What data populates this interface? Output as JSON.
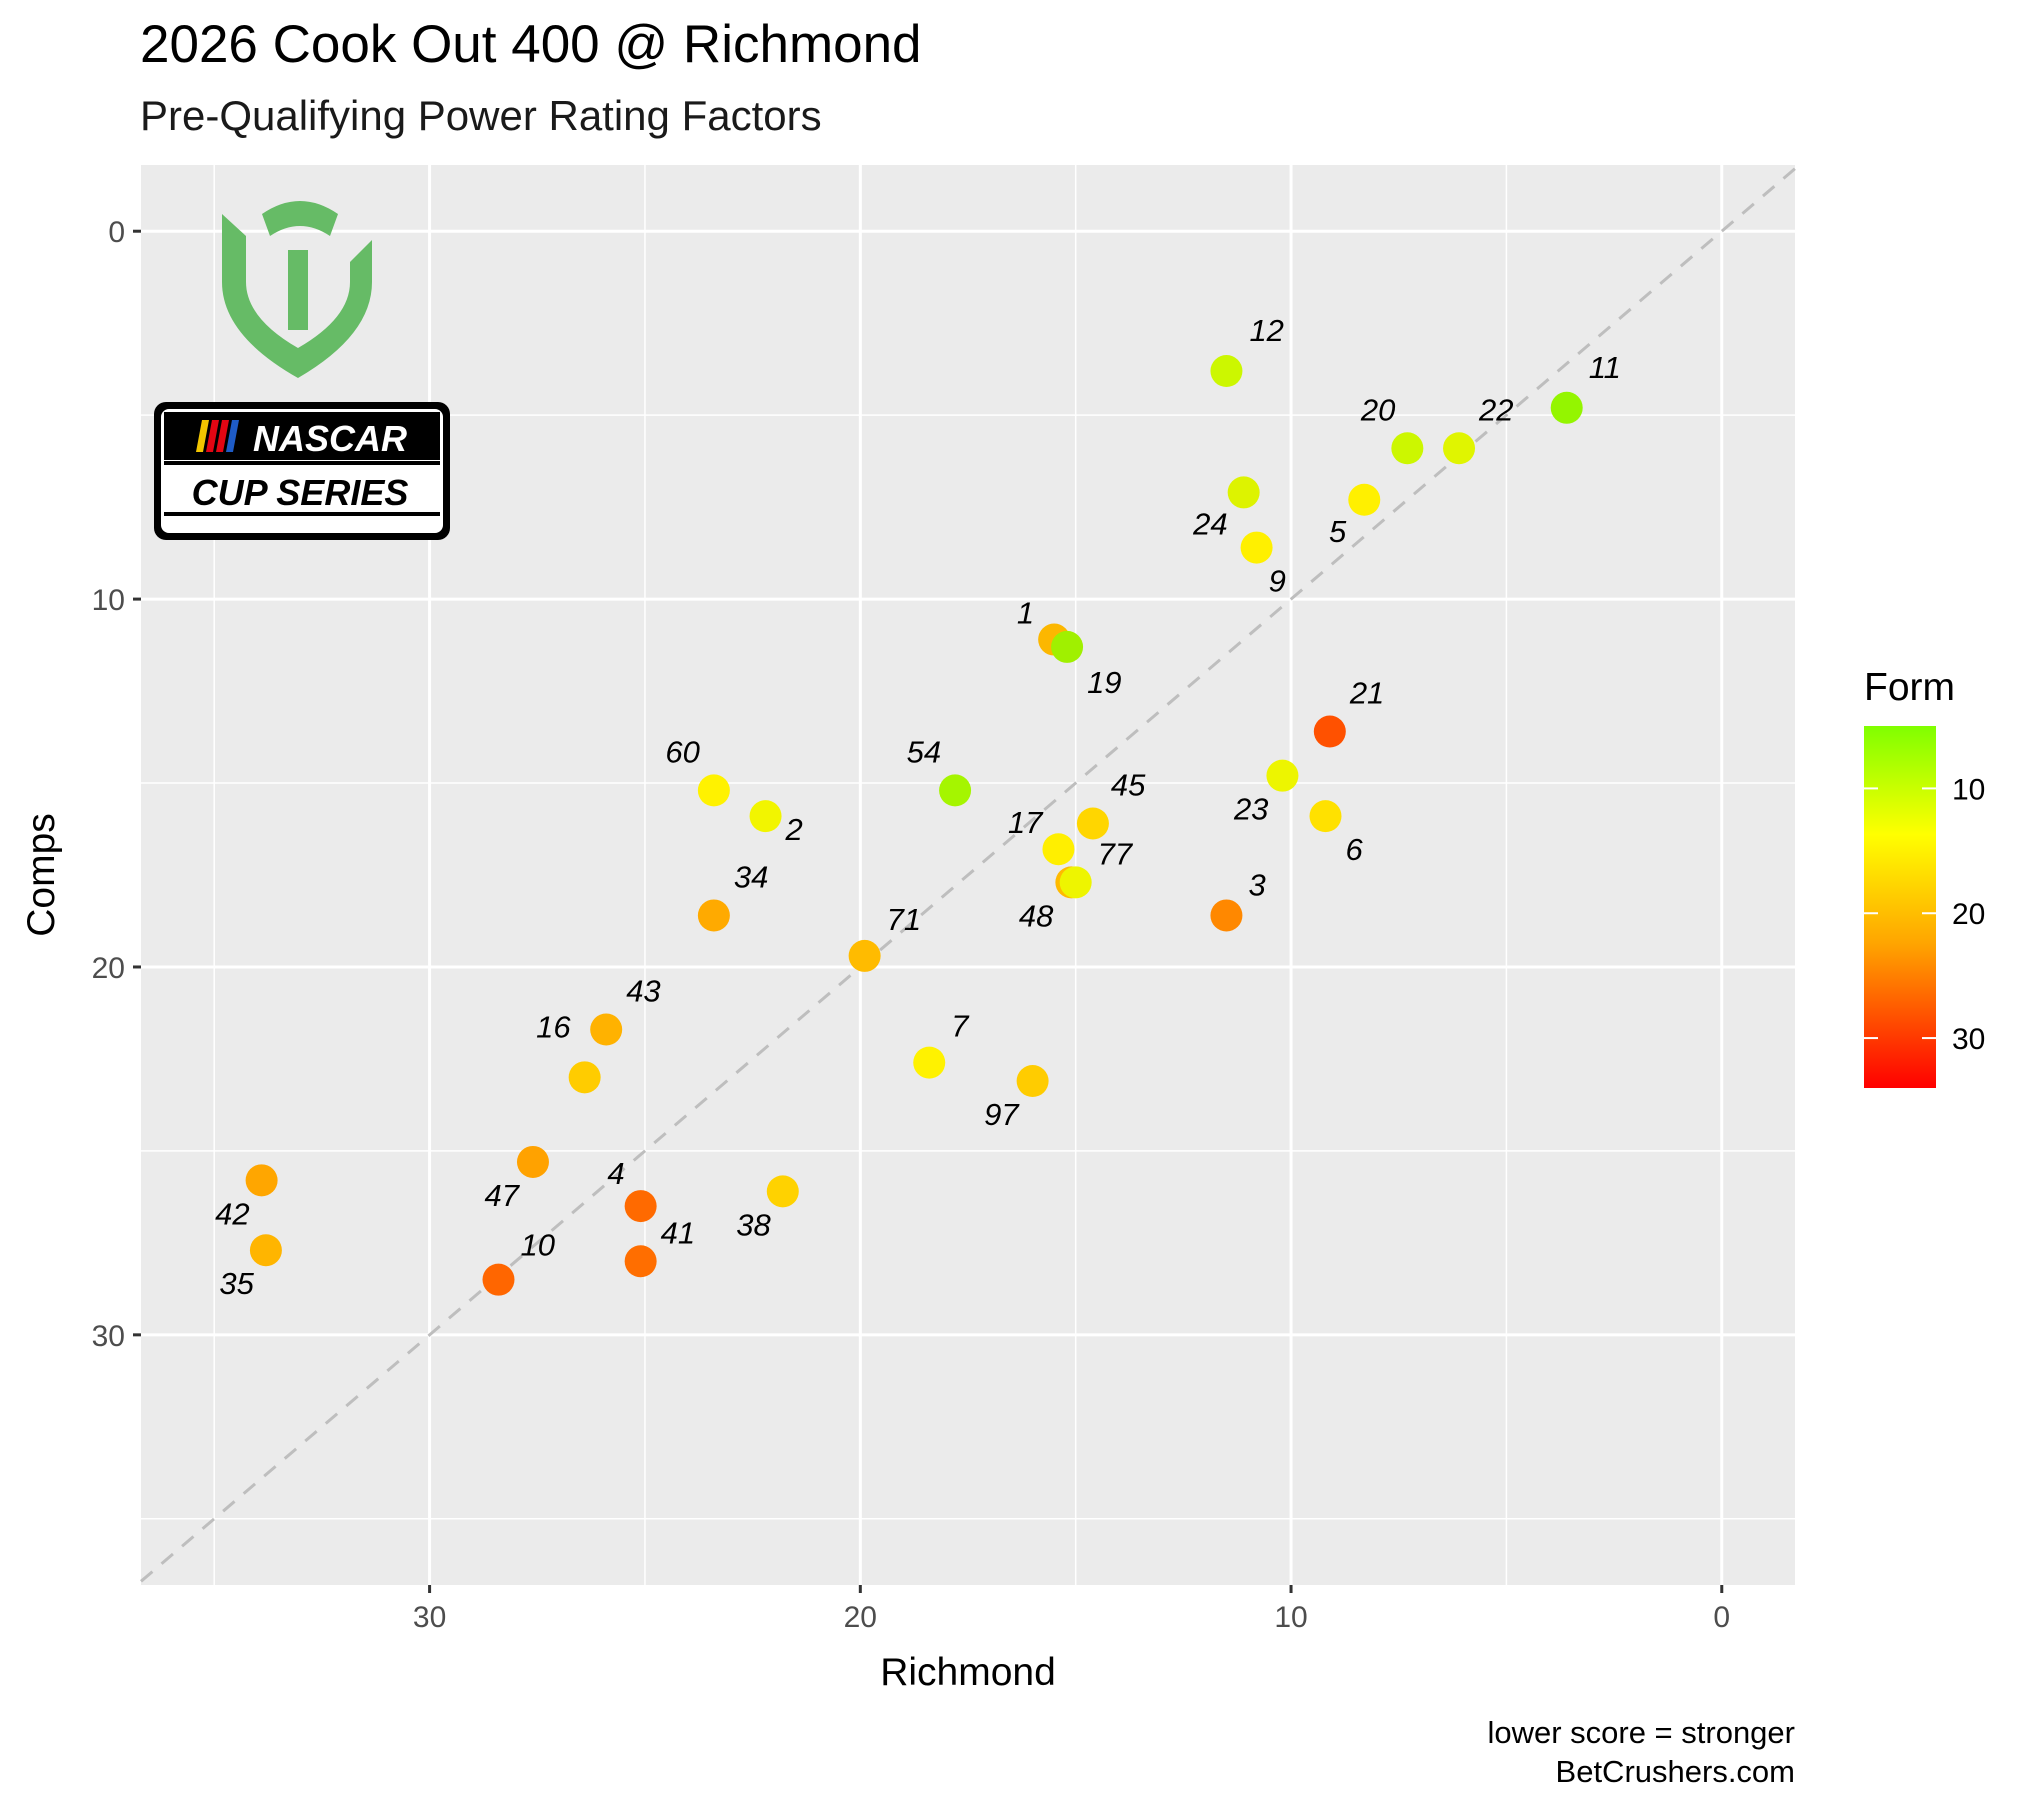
{
  "chart_data": {
    "type": "scatter",
    "title": "2026 Cook Out 400 @ Richmond",
    "subtitle": "Pre-Qualifying Power Rating Factors",
    "xlabel": "Richmond",
    "ylabel": "Comps",
    "x_reversed": true,
    "y_reversed": true,
    "xlim": [
      36.7,
      -1.7
    ],
    "ylim": [
      36.8,
      -1.8
    ],
    "x_ticks": [
      30,
      20,
      10,
      0
    ],
    "y_ticks": [
      0,
      10,
      20,
      30
    ],
    "grid": true,
    "reference_line": "dashed y = x diagonal",
    "legend": {
      "title": "Form",
      "type": "colorbar",
      "ticks": [
        10,
        20,
        30
      ],
      "range": [
        5,
        34
      ],
      "colors": [
        "#80FF00",
        "#FFFF00",
        "#FFA500",
        "#FF0000"
      ],
      "placement": "right"
    },
    "points": [
      {
        "label": "12",
        "x": 11.5,
        "y": 3.8,
        "form": 8,
        "color": "#CCF700"
      },
      {
        "label": "11",
        "x": 3.6,
        "y": 4.8,
        "form": 5,
        "color": "#94F500"
      },
      {
        "label": "20",
        "x": 7.3,
        "y": 5.9,
        "form": 8,
        "color": "#CCF700"
      },
      {
        "label": "22",
        "x": 6.1,
        "y": 5.9,
        "form": 9,
        "color": "#E0F500"
      },
      {
        "label": "24",
        "x": 11.1,
        "y": 7.1,
        "form": 9,
        "color": "#DDF300"
      },
      {
        "label": "5",
        "x": 8.3,
        "y": 7.3,
        "form": 13,
        "color": "#FFF000"
      },
      {
        "label": "9",
        "x": 10.8,
        "y": 8.6,
        "form": 13,
        "color": "#FFF000"
      },
      {
        "label": "1",
        "x": 15.5,
        "y": 11.1,
        "form": 21,
        "color": "#FCB700"
      },
      {
        "label": "19",
        "x": 15.2,
        "y": 11.3,
        "form": 6,
        "color": "#A0F000"
      },
      {
        "label": "21",
        "x": 9.1,
        "y": 13.6,
        "form": 29,
        "color": "#FF5100"
      },
      {
        "label": "60",
        "x": 23.4,
        "y": 15.2,
        "form": 13,
        "color": "#FFF200"
      },
      {
        "label": "54",
        "x": 17.8,
        "y": 15.2,
        "form": 6,
        "color": "#A5F500"
      },
      {
        "label": "23",
        "x": 10.2,
        "y": 14.8,
        "form": 11,
        "color": "#EDF500"
      },
      {
        "label": "2",
        "x": 22.2,
        "y": 15.9,
        "form": 12,
        "color": "#F2F500"
      },
      {
        "label": "17",
        "x": 15.4,
        "y": 16.8,
        "form": 14,
        "color": "#FFEF00"
      },
      {
        "label": "45",
        "x": 14.6,
        "y": 16.1,
        "form": 17,
        "color": "#FFD600"
      },
      {
        "label": "6",
        "x": 9.2,
        "y": 15.9,
        "form": 16,
        "color": "#FFE100"
      },
      {
        "label": "48",
        "x": 15.1,
        "y": 17.7,
        "form": 20,
        "color": "#FFBA00"
      },
      {
        "label": "77",
        "x": 15.0,
        "y": 17.7,
        "form": 12,
        "color": "#EEF500"
      },
      {
        "label": "34",
        "x": 23.4,
        "y": 18.6,
        "form": 22,
        "color": "#FFAA00"
      },
      {
        "label": "3",
        "x": 11.5,
        "y": 18.6,
        "form": 25,
        "color": "#FF8800"
      },
      {
        "label": "71",
        "x": 19.9,
        "y": 19.7,
        "form": 20,
        "color": "#FFBB00"
      },
      {
        "label": "43",
        "x": 25.9,
        "y": 21.7,
        "form": 20,
        "color": "#FFB200"
      },
      {
        "label": "7",
        "x": 18.4,
        "y": 22.6,
        "form": 13,
        "color": "#FFF200"
      },
      {
        "label": "97",
        "x": 16.0,
        "y": 23.1,
        "form": 18,
        "color": "#FFCC00"
      },
      {
        "label": "16",
        "x": 26.4,
        "y": 23.0,
        "form": 18,
        "color": "#FFCC00"
      },
      {
        "label": "47",
        "x": 27.6,
        "y": 25.3,
        "form": 22,
        "color": "#FFA200"
      },
      {
        "label": "42",
        "x": 33.9,
        "y": 25.8,
        "form": 22,
        "color": "#FFA600"
      },
      {
        "label": "38",
        "x": 21.8,
        "y": 26.1,
        "form": 17,
        "color": "#FFD200"
      },
      {
        "label": "4",
        "x": 25.1,
        "y": 26.5,
        "form": 27,
        "color": "#FF6A00"
      },
      {
        "label": "35",
        "x": 33.8,
        "y": 27.7,
        "form": 20,
        "color": "#FFB500"
      },
      {
        "label": "41",
        "x": 25.1,
        "y": 28.0,
        "form": 27,
        "color": "#FF6E00"
      },
      {
        "label": "10",
        "x": 28.4,
        "y": 28.5,
        "form": 27,
        "color": "#FF6600"
      }
    ],
    "caption": [
      "lower score = stronger",
      "BetCrushers.com"
    ]
  },
  "logos": {
    "bc_logo_text": "BC",
    "nascar_badge": [
      "NASCAR",
      "CUP SERIES"
    ],
    "bc_logo_color": "#66BB66"
  }
}
